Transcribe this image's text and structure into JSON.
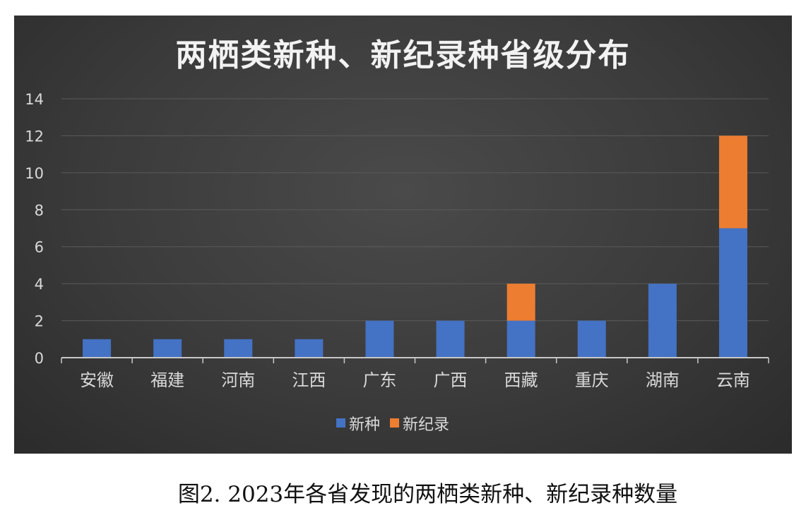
{
  "chart_data": {
    "type": "bar",
    "stacked": true,
    "title": "两栖类新种、新纪录种省级分布",
    "categories": [
      "安徽",
      "福建",
      "河南",
      "江西",
      "广东",
      "广西",
      "西藏",
      "重庆",
      "湖南",
      "云南"
    ],
    "series": [
      {
        "name": "新种",
        "color": "#4472c4",
        "values": [
          1,
          1,
          1,
          1,
          2,
          2,
          2,
          2,
          4,
          7
        ]
      },
      {
        "name": "新纪录",
        "color": "#ed7d31",
        "values": [
          0,
          0,
          0,
          0,
          0,
          0,
          2,
          0,
          0,
          5
        ]
      }
    ],
    "ylim": [
      0,
      14
    ],
    "yticks": [
      "0",
      "2",
      "4",
      "6",
      "8",
      "10",
      "12",
      "14"
    ],
    "grid": true,
    "legend_position": "bottom"
  },
  "caption": "图2. 2023年各省发现的两栖类新种、新纪录种数量",
  "colors": {
    "background": "#3b3b3b",
    "gridline": "#5a5a5a",
    "text": "#d9d9d9"
  }
}
